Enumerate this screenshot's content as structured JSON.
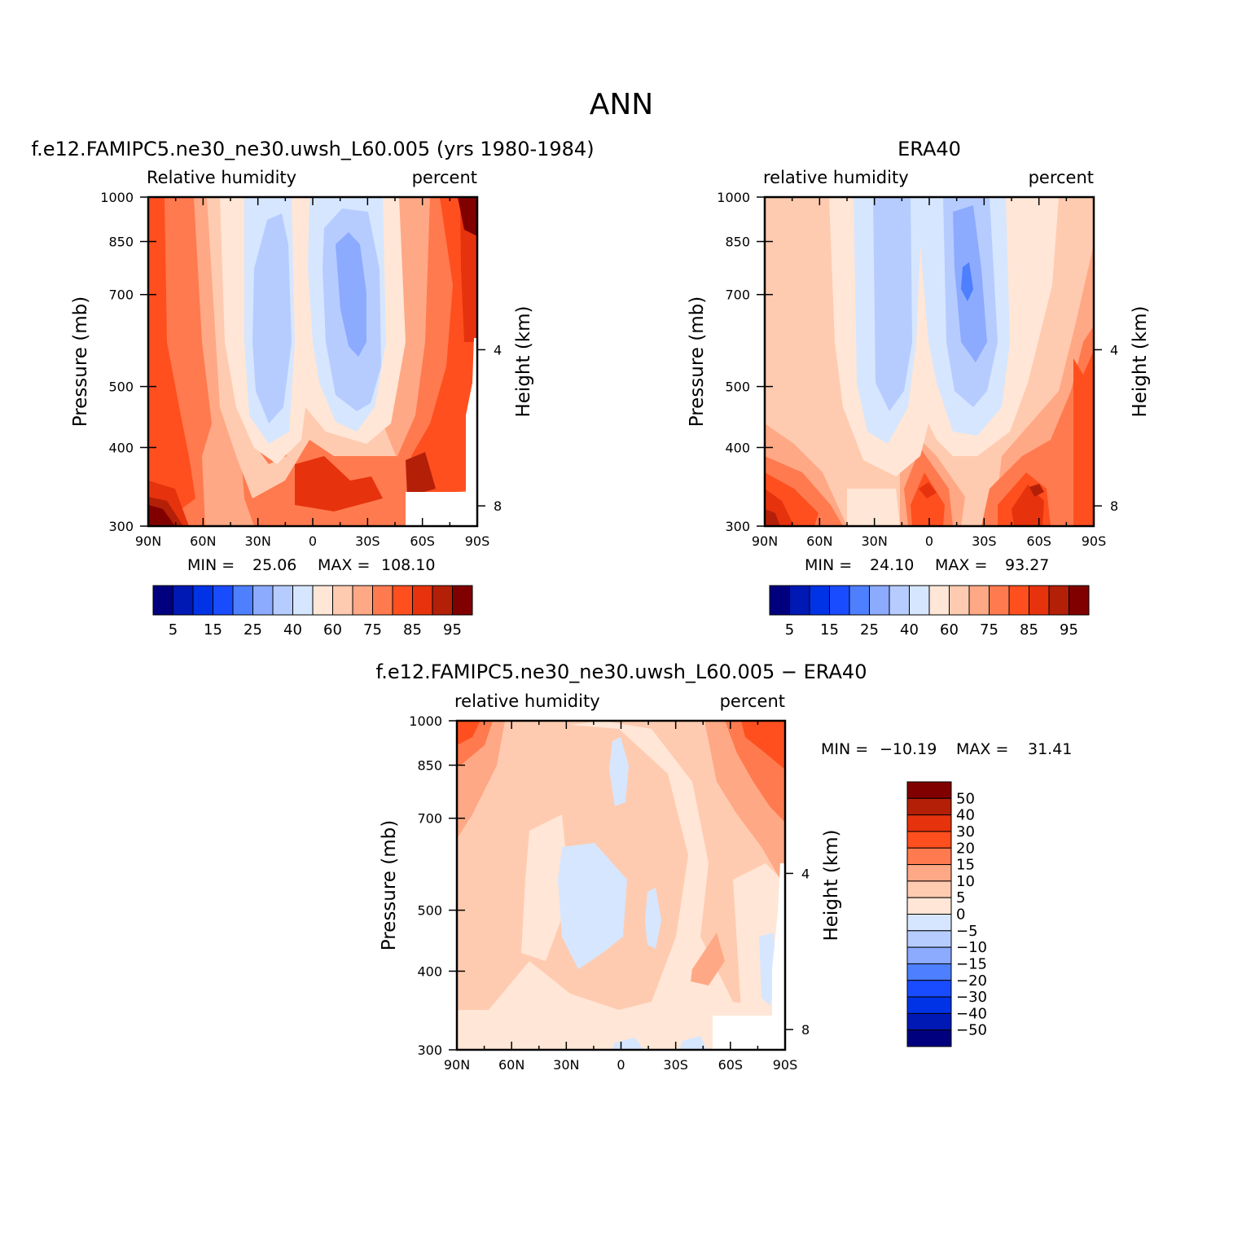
{
  "page": {
    "title": "ANN",
    "colors": [
      "#00007f",
      "#0019b4",
      "#0033e6",
      "#1a4cff",
      "#4d7fff",
      "#8cabff",
      "#b6ccff",
      "#d6e6ff",
      "#ffe6d6",
      "#ffcbb0",
      "#ffa885",
      "#ff7a4f",
      "#ff4f1f",
      "#e6330d",
      "#b41f08",
      "#800000"
    ]
  },
  "chart_data": [
    {
      "type": "heatmap",
      "title": "f.e12.FAMIPC5.ne30_ne30.uwsh_L60.005 (yrs 1980-1984)",
      "left_label": "Relative humidity",
      "right_label": "percent",
      "ylabel": "Pressure (mb)",
      "ylabel_right": "Height (km)",
      "x_ticks": [
        "90N",
        "60N",
        "30N",
        "0",
        "30S",
        "60S",
        "90S"
      ],
      "y_ticks": [
        "300",
        "400",
        "500",
        "700",
        "850",
        "1000"
      ],
      "y_right_ticks": [
        "8",
        "4"
      ],
      "min_label": "MIN =",
      "min_value": "25.06",
      "max_label": "MAX =",
      "max_value": "108.10",
      "colorbar": [
        "5",
        "15",
        "25",
        "40",
        "60",
        "75",
        "85",
        "95"
      ]
    },
    {
      "type": "heatmap",
      "title": "ERA40",
      "left_label": "relative humidity",
      "right_label": "percent",
      "ylabel": "Pressure (mb)",
      "ylabel_right": "Height (km)",
      "x_ticks": [
        "90N",
        "60N",
        "30N",
        "0",
        "30S",
        "60S",
        "90S"
      ],
      "y_ticks": [
        "300",
        "400",
        "500",
        "700",
        "850",
        "1000"
      ],
      "y_right_ticks": [
        "8",
        "4"
      ],
      "min_label": "MIN =",
      "min_value": "24.10",
      "max_label": "MAX =",
      "max_value": "93.27",
      "colorbar": [
        "5",
        "15",
        "25",
        "40",
        "60",
        "75",
        "85",
        "95"
      ]
    },
    {
      "type": "heatmap",
      "title": "f.e12.FAMIPC5.ne30_ne30.uwsh_L60.005 − ERA40",
      "left_label": "relative humidity",
      "right_label": "percent",
      "ylabel": "Pressure (mb)",
      "ylabel_right": "Height (km)",
      "x_ticks": [
        "90N",
        "60N",
        "30N",
        "0",
        "30S",
        "60S",
        "90S"
      ],
      "y_ticks": [
        "300",
        "400",
        "500",
        "700",
        "850",
        "1000"
      ],
      "y_right_ticks": [
        "8",
        "4"
      ],
      "min_label": "MIN =",
      "min_value": "−10.19",
      "max_label": "MAX =",
      "max_value": "31.41",
      "colorbar": [
        "50",
        "40",
        "30",
        "20",
        "15",
        "10",
        "5",
        "0",
        "−5",
        "−10",
        "−15",
        "−20",
        "−30",
        "−40",
        "−50"
      ]
    }
  ]
}
